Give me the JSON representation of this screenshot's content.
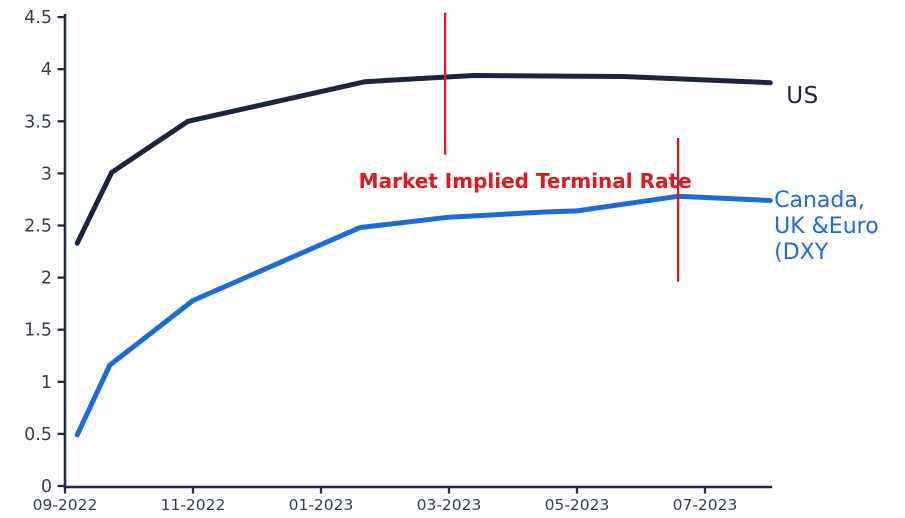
{
  "colors": {
    "navy": "#1b2542",
    "blue": "#1e6bd8",
    "red": "#e3171d",
    "axis": "#222c48",
    "tick_label": "#333d55",
    "background": "#ffffff"
  },
  "chart_data": {
    "type": "line",
    "title": "",
    "xlabel": "",
    "ylabel": "",
    "grid": false,
    "legend_position": "end-of-line",
    "x_axis": {
      "unit": "months after 09-2022",
      "tick_labels": [
        "09-2022",
        "11-2022",
        "01-2023",
        "03-2023",
        "05-2023",
        "07-2023"
      ],
      "tick_positions": [
        0,
        2,
        4,
        6,
        8,
        10
      ],
      "range": [
        0,
        11.05
      ]
    },
    "y_axis": {
      "tick_labels": [
        "0",
        "0.5",
        "1",
        "1.5",
        "2",
        "2.5",
        "3",
        "3.5",
        "4",
        "4.5"
      ],
      "tick_values": [
        0,
        0.5,
        1,
        1.5,
        2,
        2.5,
        3,
        3.5,
        4,
        4.5
      ],
      "range": [
        0,
        4.5
      ]
    },
    "series": [
      {
        "name": "US",
        "label": "US",
        "color": "#1b2542",
        "points": [
          [
            0.19,
            2.33
          ],
          [
            0.73,
            3.01
          ],
          [
            1.92,
            3.5
          ],
          [
            4.69,
            3.88
          ],
          [
            6.38,
            3.94
          ],
          [
            8.72,
            3.93
          ],
          [
            11.02,
            3.87
          ]
        ],
        "label_anchor": {
          "x_month": 11.27,
          "y_value": 3.87
        }
      },
      {
        "name": "Canada, UK & Euro (DXY)",
        "label": "Canada,\nUK &Euro\n(DXY",
        "color": "#1e6bd8",
        "points": [
          [
            0.19,
            0.49
          ],
          [
            0.7,
            1.16
          ],
          [
            2.0,
            1.78
          ],
          [
            4.61,
            2.48
          ],
          [
            6.0,
            2.58
          ],
          [
            7.5,
            2.63
          ],
          [
            8.0,
            2.64
          ],
          [
            9.58,
            2.78
          ],
          [
            11.02,
            2.74
          ]
        ],
        "label_anchor": {
          "x_month": 11.08,
          "y_value": 2.86
        }
      }
    ],
    "annotations": {
      "text": "Market Implied Terminal Rate",
      "text_color": "#e3171d",
      "text_anchor": {
        "x_month": 7.19,
        "y_value": 3.04
      },
      "vlines": [
        {
          "x_month": 5.94,
          "y_from": 3.18,
          "y_to": 4.54
        },
        {
          "x_month": 9.58,
          "y_from": 1.96,
          "y_to": 3.34
        }
      ]
    }
  }
}
